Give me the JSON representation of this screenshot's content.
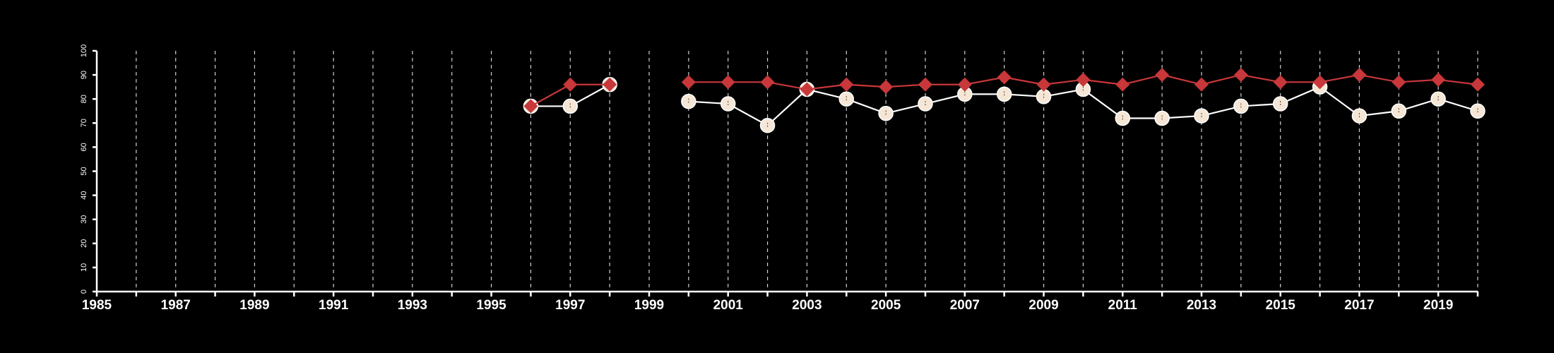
{
  "chart_data": {
    "type": "line",
    "title": "",
    "xlabel": "",
    "ylabel": "",
    "xlim": [
      1985,
      2020
    ],
    "ylim": [
      0,
      100
    ],
    "x_ticks": [
      1985,
      1987,
      1989,
      1991,
      1993,
      1995,
      1997,
      1999,
      2001,
      2003,
      2005,
      2007,
      2009,
      2011,
      2013,
      2015,
      2017,
      2019
    ],
    "y_ticks": [
      0,
      10,
      20,
      30,
      40,
      50,
      60,
      70,
      80,
      90,
      100
    ],
    "grid": "vertical dashed lines at every year",
    "legend": "none",
    "series": [
      {
        "marker": "circle",
        "line_color": "#ffffff",
        "marker_color": "#f5e6d6",
        "x": [
          1996,
          1997,
          1998,
          null,
          2000,
          2001,
          2002,
          2003,
          2004,
          2005,
          2006,
          2007,
          2008,
          2009,
          2010,
          2011,
          2012,
          2013,
          2014,
          2015,
          2016,
          2017,
          2018,
          2019,
          2020
        ],
        "values": [
          77,
          77,
          86,
          null,
          79,
          78,
          69,
          84,
          80,
          74,
          78,
          82,
          82,
          81,
          84,
          72,
          72,
          73,
          77,
          78,
          85,
          73,
          75,
          80,
          75
        ]
      },
      {
        "marker": "diamond",
        "line_color": "#c8373a",
        "marker_color": "#c8373a",
        "x": [
          1996,
          1997,
          1998,
          null,
          2000,
          2001,
          2002,
          2003,
          2004,
          2005,
          2006,
          2007,
          2008,
          2009,
          2010,
          2011,
          2012,
          2013,
          2014,
          2015,
          2016,
          2017,
          2018,
          2019,
          2020
        ],
        "values": [
          77,
          86,
          86,
          null,
          87,
          87,
          87,
          84,
          86,
          85,
          86,
          86,
          89,
          86,
          88,
          86,
          90,
          86,
          90,
          87,
          87,
          90,
          87,
          88,
          86
        ]
      }
    ]
  }
}
